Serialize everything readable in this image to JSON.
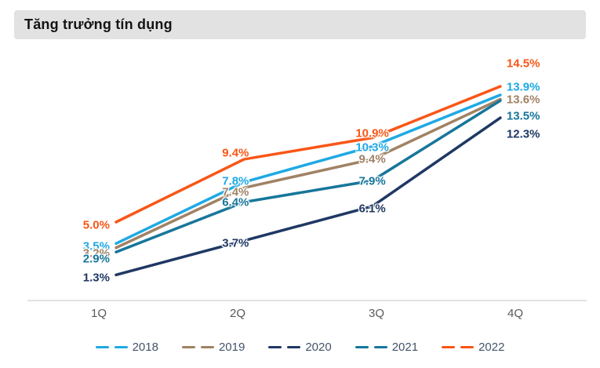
{
  "title": "Tăng trưởng tín dụng",
  "chart_data": {
    "type": "line",
    "title": "Tăng trưởng tín dụng",
    "x_categories": [
      "1Q",
      "2Q",
      "3Q",
      "4Q"
    ],
    "unit": "%",
    "ylim": [
      0,
      16
    ],
    "grid": false,
    "legend_position": "bottom",
    "series": [
      {
        "name": "2018",
        "color": "#1FA9E4",
        "values": [
          3.5,
          7.8,
          10.3,
          13.9
        ],
        "labels": [
          "3.5%",
          "7.8%",
          "10.3%",
          "13.9%"
        ]
      },
      {
        "name": "2019",
        "color": "#A08264",
        "values": [
          3.2,
          7.4,
          9.4,
          13.6
        ],
        "labels": [
          "3.2%",
          "7.4%",
          "9.4%",
          "13.6%"
        ]
      },
      {
        "name": "2020",
        "color": "#1F3864",
        "values": [
          1.3,
          3.7,
          6.1,
          12.3
        ],
        "labels": [
          "1.3%",
          "3.7%",
          "6.1%",
          "12.3%"
        ]
      },
      {
        "name": "2021",
        "color": "#17769B",
        "values": [
          2.9,
          6.4,
          7.9,
          13.5
        ],
        "labels": [
          "2.9%",
          "6.4%",
          "7.9%",
          "13.5%"
        ]
      },
      {
        "name": "2022",
        "color": "#F95616",
        "values": [
          5.0,
          9.4,
          10.9,
          14.5
        ],
        "labels": [
          "5.0%",
          "9.4%",
          "10.9%",
          "14.5%"
        ]
      }
    ],
    "axis_color": "#d9d9d9",
    "tick_color": "#595959",
    "legend_text_color": "#44546a"
  }
}
